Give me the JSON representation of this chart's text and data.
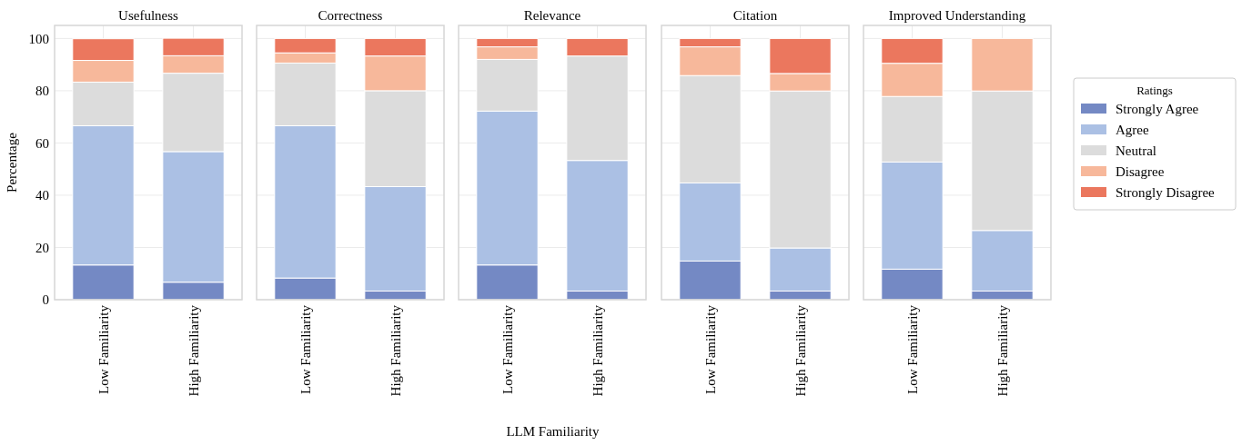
{
  "chart_data": [
    {
      "type": "bar",
      "stacked": true,
      "title": "Usefulness",
      "ylabel": "Percentage",
      "categories": [
        "Low Familiarity",
        "High Familiarity"
      ],
      "ylim": [
        0,
        105
      ],
      "yticks": [
        0,
        20,
        40,
        60,
        80,
        100
      ],
      "grid": true,
      "series": [
        {
          "color": "#7489c4",
          "values": [
            13.3,
            6.7
          ]
        },
        {
          "color": "#abc0e4",
          "values": [
            53.3,
            50
          ]
        },
        {
          "color": "#dcdcdc",
          "values": [
            16.7,
            30
          ]
        },
        {
          "color": "#f7b89b",
          "values": [
            8.3,
            6.7
          ]
        },
        {
          "color": "#eb775e",
          "values": [
            8.3,
            6.7
          ]
        }
      ]
    },
    {
      "type": "bar",
      "stacked": true,
      "title": "Correctness",
      "categories": [
        "Low Familiarity",
        "High Familiarity"
      ],
      "ylim": [
        0,
        105
      ],
      "yticks": [
        0,
        20,
        40,
        60,
        80,
        100
      ],
      "tick_labels": "x",
      "grid": true,
      "series": [
        {
          "color": "#7489c4",
          "values": [
            8.3,
            3.3
          ]
        },
        {
          "color": "#abc0e4",
          "values": [
            58.3,
            40
          ]
        },
        {
          "color": "#dcdcdc",
          "values": [
            24,
            36.7
          ]
        },
        {
          "color": "#f7b89b",
          "values": [
            3.9,
            13.3
          ]
        },
        {
          "color": "#eb775e",
          "values": [
            5.5,
            6.7
          ]
        }
      ]
    },
    {
      "type": "bar",
      "stacked": true,
      "title": "Relevance",
      "xlabel": "LLM Familiarity",
      "categories": [
        "Low Familiarity",
        "High Familiarity"
      ],
      "ylim": [
        0,
        105
      ],
      "yticks": [
        0,
        20,
        40,
        60,
        80,
        100
      ],
      "tick_labels": "x",
      "grid": true,
      "series": [
        {
          "color": "#7489c4",
          "values": [
            13.3,
            3.3
          ]
        },
        {
          "color": "#abc0e4",
          "values": [
            58.9,
            50
          ]
        },
        {
          "color": "#dcdcdc",
          "values": [
            19.8,
            40
          ]
        },
        {
          "color": "#f7b89b",
          "values": [
            4.8,
            0
          ]
        },
        {
          "color": "#eb775e",
          "values": [
            3.2,
            6.7
          ]
        }
      ]
    },
    {
      "type": "bar",
      "stacked": true,
      "title": "Citation",
      "categories": [
        "Low Familiarity",
        "High Familiarity"
      ],
      "ylim": [
        0,
        105
      ],
      "yticks": [
        0,
        20,
        40,
        60,
        80,
        100
      ],
      "tick_labels": "x",
      "grid": true,
      "series": [
        {
          "color": "#7489c4",
          "values": [
            14.8,
            3.3
          ]
        },
        {
          "color": "#abc0e4",
          "values": [
            29.9,
            16.5
          ]
        },
        {
          "color": "#dcdcdc",
          "values": [
            41.1,
            60.1
          ]
        },
        {
          "color": "#f7b89b",
          "values": [
            11,
            6.7
          ]
        },
        {
          "color": "#eb775e",
          "values": [
            3.2,
            13.4
          ]
        }
      ]
    },
    {
      "type": "bar",
      "stacked": true,
      "title": "Improved Understanding",
      "categories": [
        "Low Familiarity",
        "High Familiarity"
      ],
      "ylim": [
        0,
        105
      ],
      "yticks": [
        0,
        20,
        40,
        60,
        80,
        100
      ],
      "tick_labels": "x",
      "grid": true,
      "legend": "right",
      "legend_title": "Ratings",
      "series": [
        {
          "name": "Strongly Agree",
          "color": "#7489c4",
          "values": [
            11.7,
            3.3
          ]
        },
        {
          "name": "Agree",
          "color": "#abc0e4",
          "values": [
            41,
            23.2
          ]
        },
        {
          "name": "Neutral",
          "color": "#dcdcdc",
          "values": [
            25.1,
            53.4
          ]
        },
        {
          "name": "Disagree",
          "color": "#f7b89b",
          "values": [
            12.7,
            20.1
          ]
        },
        {
          "name": "Strongly Disagree",
          "color": "#eb775e",
          "values": [
            9.5,
            0
          ]
        }
      ]
    }
  ]
}
